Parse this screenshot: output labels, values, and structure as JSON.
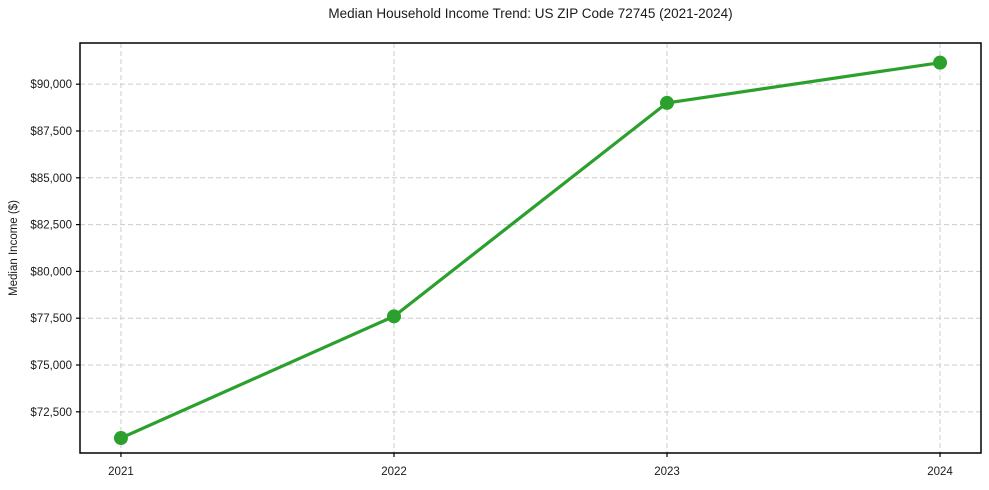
{
  "chart_data": {
    "type": "line",
    "title": "Median Household Income Trend: US ZIP Code 72745 (2021-2024)",
    "xlabel": "",
    "ylabel": "Median Income ($)",
    "x": [
      2021,
      2022,
      2023,
      2024
    ],
    "xtick_labels": [
      "2021",
      "2022",
      "2023",
      "2024"
    ],
    "series": [
      {
        "name": "Median household income",
        "values": [
          71100,
          77600,
          89000,
          91150
        ],
        "color": "#2ca02c",
        "marker": "circle"
      }
    ],
    "ytick_values": [
      72500,
      75000,
      77500,
      80000,
      82500,
      85000,
      87500,
      90000
    ],
    "ytick_labels": [
      "$72,500",
      "$75,000",
      "$77,500",
      "$80,000",
      "$82,500",
      "$85,000",
      "$87,500",
      "$90,000"
    ],
    "xlim": [
      2020.85,
      2024.15
    ],
    "ylim": [
      70300,
      92200
    ],
    "grid": "both-dashed",
    "legend": "none",
    "colors": {
      "line": "#2ca02c",
      "grid": "#cccccc",
      "axis": "#000000",
      "text": "#1a1a1a",
      "background": "#ffffff"
    }
  }
}
